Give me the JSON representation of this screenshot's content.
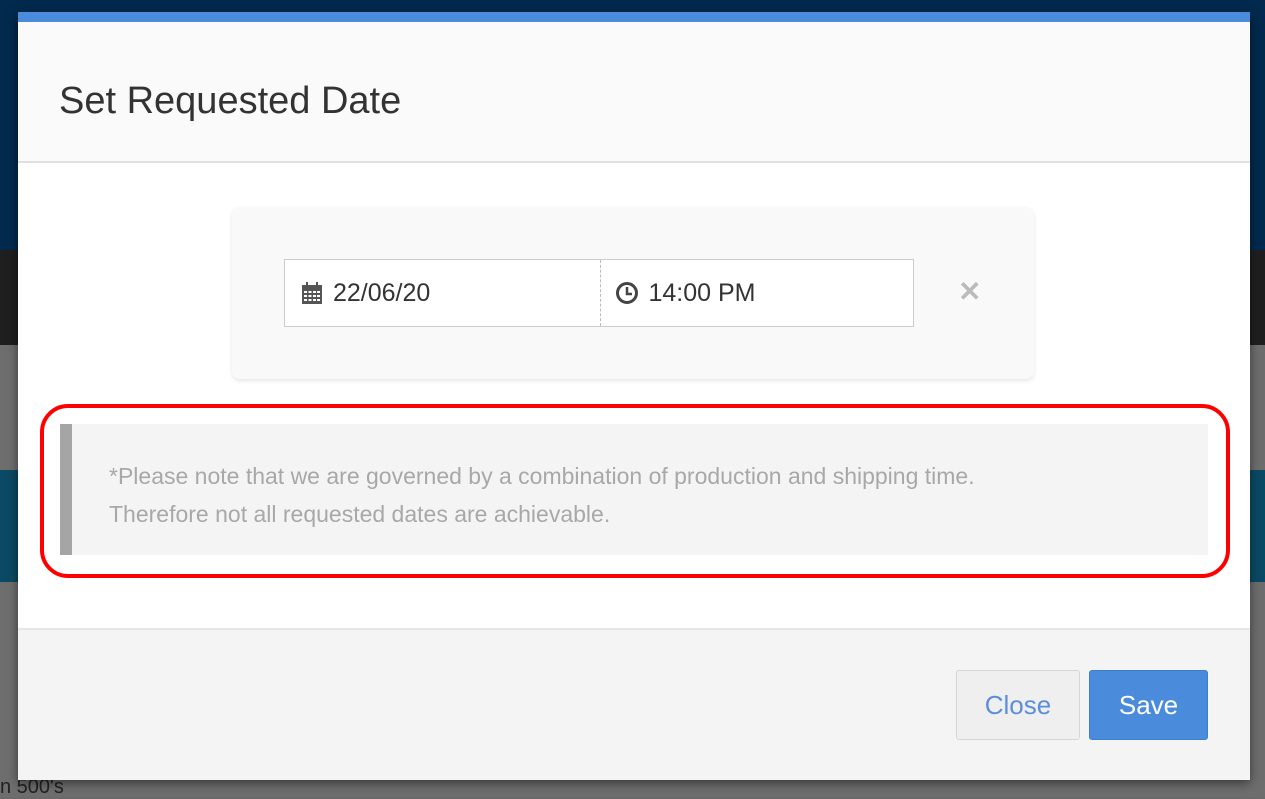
{
  "background": {
    "partial_text": "n 500's"
  },
  "modal": {
    "title": "Set Requested Date",
    "accent_color": "#4a8bdc",
    "date_value": "22/06/20",
    "time_value": "14:00 PM",
    "date_icon": "calendar-icon",
    "time_icon": "clock-icon",
    "clear_icon": "close-icon",
    "clear_symbol": "✕",
    "note_line1": "*Please note that we are governed by a combination of production and shipping time.",
    "note_line2": "Therefore not all requested dates are achievable.",
    "highlight_color": "#ff0000",
    "close_label": "Close",
    "save_label": "Save"
  }
}
